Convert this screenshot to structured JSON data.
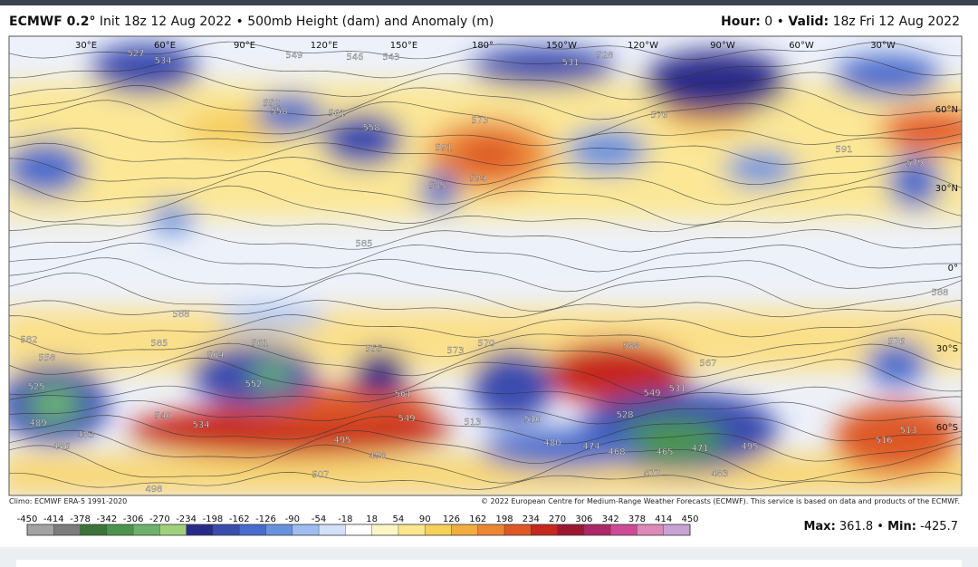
{
  "header": {
    "model": "ECMWF 0.2°",
    "subtitle": "Init 18z 12 Aug 2022 • 500mb Height (dam) and Anomaly (m)",
    "hour_label": "Hour:",
    "hour_value": "0 •",
    "valid_label": "Valid:",
    "valid_value": "18z Fri 12 Aug 2022"
  },
  "map": {
    "longitude_labels": [
      "30°E",
      "60°E",
      "90°E",
      "120°E",
      "150°E",
      "180°",
      "150°W",
      "120°W",
      "90°W",
      "60°W",
      "30°W"
    ],
    "latitude_labels": [
      "60°N",
      "30°N",
      "0°",
      "30°S",
      "60°S"
    ],
    "contour_labels": [
      "527",
      "534",
      "549",
      "546",
      "543",
      "531",
      "528",
      "552",
      "558",
      "561",
      "558",
      "573",
      "591",
      "594",
      "585",
      "576",
      "591",
      "579",
      "588",
      "585",
      "582",
      "585",
      "588",
      "561",
      "564",
      "555",
      "573",
      "570",
      "588",
      "567",
      "576",
      "558",
      "540",
      "534",
      "549",
      "561",
      "513",
      "510",
      "528",
      "549",
      "531",
      "480",
      "474",
      "468",
      "465",
      "471",
      "477",
      "483",
      "495",
      "483",
      "486",
      "489",
      "495",
      "498",
      "507",
      "498",
      "516",
      "513",
      "525",
      "552"
    ]
  },
  "credits": {
    "climo": "Climo: ECMWF ERA-5 1991-2020",
    "copyright": "© 2022 European Centre for Medium-Range Weather Forecasts (ECMWF). This service is based on data and products of the ECMWF."
  },
  "colorbar": {
    "ticks": [
      -450,
      -414,
      -378,
      -342,
      -306,
      -270,
      -234,
      -198,
      -162,
      -126,
      -90,
      -54,
      -18,
      18,
      54,
      90,
      126,
      162,
      198,
      234,
      270,
      306,
      342,
      378,
      414,
      450
    ],
    "colors": [
      "#a3a3a3",
      "#7c7c7c",
      "#3b733b",
      "#4c944c",
      "#6cb26c",
      "#a0d07c",
      "#2a2a88",
      "#3a4cae",
      "#486ccc",
      "#6892de",
      "#9ebcf0",
      "#d2e1f9",
      "#ffffff",
      "#fdf6c4",
      "#fbe78c",
      "#f6d05a",
      "#f2ad40",
      "#ec8630",
      "#de5826",
      "#c6281e",
      "#9c1830",
      "#ad2868",
      "#ce4a96",
      "#de8ab8",
      "#c8a2d2"
    ]
  },
  "stats": {
    "max_label": "Max:",
    "max_value": 361.8,
    "separator": "•",
    "min_label": "Min:",
    "min_value": -425.7
  }
}
